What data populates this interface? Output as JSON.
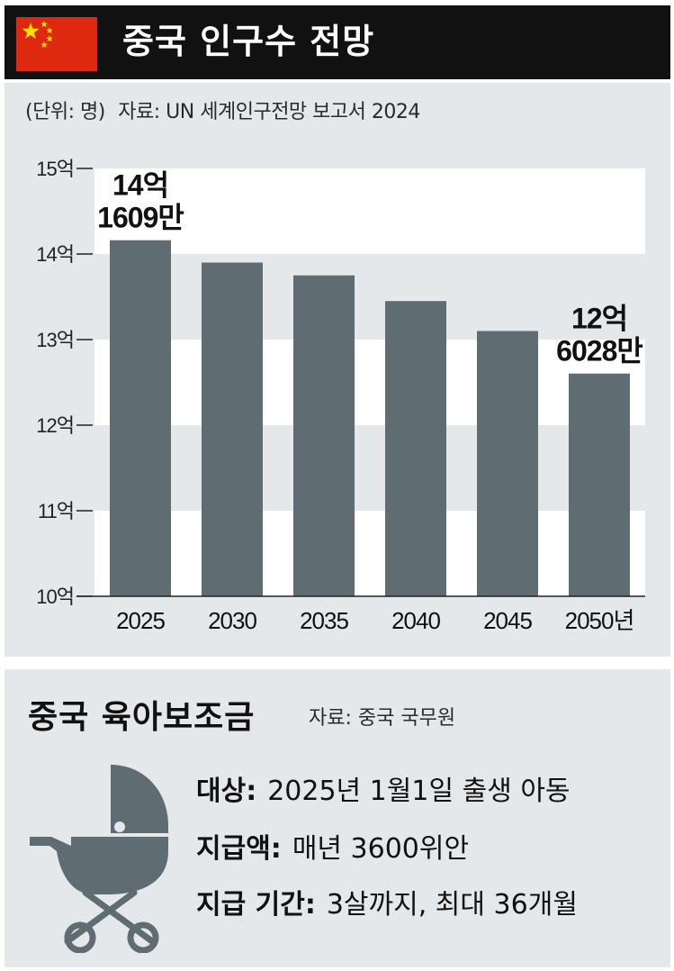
{
  "header": {
    "title": "중국 인구수 전망",
    "flag_icon": "china-flag-icon",
    "flag_colors": {
      "field": "#de2910",
      "stars": "#ffde00"
    }
  },
  "chart_meta": {
    "unit": "(단위: 명)",
    "source": "자료: UN 세계인구전망 보고서 2024"
  },
  "chart_data": {
    "type": "bar",
    "title": "중국 인구수 전망",
    "categories": [
      "2025",
      "2030",
      "2035",
      "2040",
      "2045",
      "2050년"
    ],
    "series": [
      {
        "values": [
          14.1609,
          13.9,
          13.75,
          13.45,
          13.1,
          12.6028
        ]
      }
    ],
    "value_unit": "억 명",
    "ylim": [
      10,
      15
    ],
    "yticks": [
      10,
      11,
      12,
      13,
      14,
      15
    ],
    "ytick_labels": [
      "10억",
      "11억",
      "12억",
      "13억",
      "14억",
      "15억"
    ],
    "annotations": [
      {
        "category": "2025",
        "lines": [
          "14억",
          "1609만"
        ]
      },
      {
        "category": "2050년",
        "lines": [
          "12억",
          "6028만"
        ]
      }
    ],
    "grid": "alternating horizontal bands",
    "bar_color": "#5f6c72",
    "band_color": "#ffffff",
    "background_color": "#e4e8eb"
  },
  "benefit": {
    "title": "중국 육아보조금",
    "source": "자료: 중국 국무원",
    "icon": "baby-stroller-icon",
    "rows": [
      {
        "key": "대상:",
        "value": "2025년 1월1일 출생 아동"
      },
      {
        "key": "지급액:",
        "value": "매년 3600위안"
      },
      {
        "key": "지급 기간:",
        "value": "3살까지, 최대 36개월"
      }
    ]
  }
}
